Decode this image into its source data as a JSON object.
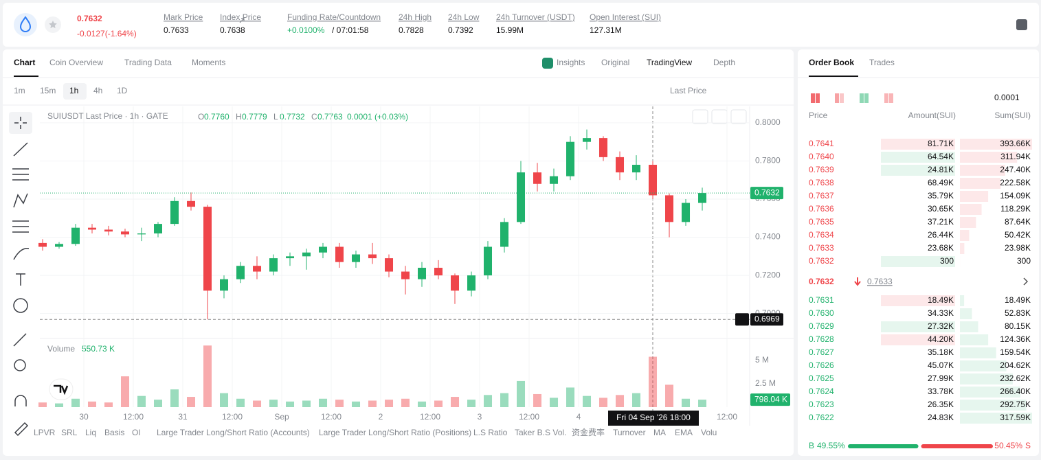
{
  "header": {
    "price": "0.7632",
    "change": "-0.0127(-1.64%)",
    "stats": [
      {
        "label": "Mark Price",
        "value": "0.7633"
      },
      {
        "label": "Index Price",
        "value": "0.7638"
      },
      {
        "label": "Funding Rate/Countdown",
        "value": "+0.0100%",
        "countdown": "/ 07:01:58"
      },
      {
        "label": "24h High",
        "value": "0.7828"
      },
      {
        "label": "24h Low",
        "value": "0.7392"
      },
      {
        "label": "24h Turnover (USDT)",
        "value": "15.99M"
      },
      {
        "label": "Open Interest (SUI)",
        "value": "127.31M"
      }
    ]
  },
  "chart_panel": {
    "tabs": [
      "Chart",
      "Coin Overview",
      "Trading Data",
      "Moments"
    ],
    "view_tabs": [
      "Insights",
      "Original",
      "TradingView",
      "Depth"
    ],
    "intervals": [
      "1m",
      "15m",
      "1h",
      "4h",
      "1D"
    ],
    "price_type": "Last Price",
    "legend": {
      "symbol": "SUIUSDT Last Price · 1h · GATE",
      "ohlc": [
        {
          "k": "O",
          "v": "0.7760"
        },
        {
          "k": "H",
          "v": "0.7779"
        },
        {
          "k": "L",
          "v": "0.7732"
        },
        {
          "k": "C",
          "v": "0.7763"
        }
      ],
      "change": "0.0001 (+0.03%)"
    },
    "volume_legend": {
      "label": "Volume",
      "value": "550.73 K"
    },
    "crosshair_time": "Fri 04 Sep '26   18:00",
    "indicators": [
      "LPVR",
      "SRL",
      "Liq",
      "Basis",
      "OI",
      "Large Trader Long/Short Ratio (Accounts)",
      "Large Trader Long/Short Ratio (Positions)",
      "L.S Ratio",
      "Taker B.S Vol.",
      "资金费率",
      "Turnover",
      "MA",
      "EMA",
      "Volu"
    ]
  },
  "chart_data": {
    "type": "candlestick",
    "up_color": "#20b26c",
    "down_color": "#ef454a",
    "grid": true,
    "x": [
      0,
      4,
      8,
      12,
      16,
      20,
      24,
      28,
      32,
      36,
      40,
      44,
      48,
      52,
      56,
      60,
      64,
      68,
      72,
      76,
      80,
      84,
      88,
      92,
      96,
      100,
      104,
      108,
      112,
      116,
      120,
      124,
      128,
      132,
      136,
      140,
      144,
      148,
      152,
      156,
      160
    ],
    "open": [
      0.737,
      0.735,
      0.7365,
      0.745,
      0.744,
      0.743,
      0.7415,
      0.742,
      0.747,
      0.759,
      0.756,
      0.712,
      0.718,
      0.725,
      0.722,
      0.729,
      0.73,
      0.732,
      0.735,
      0.727,
      0.731,
      0.729,
      0.722,
      0.718,
      0.724,
      0.72,
      0.712,
      0.72,
      0.735,
      0.748,
      0.774,
      0.768,
      0.772,
      0.79,
      0.792,
      0.782,
      0.774,
      0.778,
      0.762,
      0.748,
      0.758
    ],
    "high": [
      0.739,
      0.7375,
      0.747,
      0.747,
      0.746,
      0.7445,
      0.745,
      0.748,
      0.761,
      0.7635,
      0.757,
      0.72,
      0.727,
      0.73,
      0.731,
      0.732,
      0.734,
      0.737,
      0.737,
      0.733,
      0.737,
      0.731,
      0.725,
      0.727,
      0.728,
      0.721,
      0.722,
      0.738,
      0.75,
      0.78,
      0.779,
      0.776,
      0.793,
      0.7965,
      0.793,
      0.785,
      0.783,
      0.78,
      0.763,
      0.76,
      0.766
    ],
    "low": [
      0.733,
      0.734,
      0.7355,
      0.742,
      0.741,
      0.74,
      0.738,
      0.74,
      0.746,
      0.754,
      0.6969,
      0.708,
      0.716,
      0.718,
      0.72,
      0.725,
      0.723,
      0.729,
      0.724,
      0.724,
      0.726,
      0.719,
      0.71,
      0.714,
      0.718,
      0.705,
      0.709,
      0.718,
      0.732,
      0.747,
      0.764,
      0.764,
      0.77,
      0.786,
      0.78,
      0.77,
      0.77,
      0.76,
      0.74,
      0.746,
      0.754
    ],
    "close": [
      0.735,
      0.7365,
      0.745,
      0.744,
      0.743,
      0.7415,
      0.742,
      0.747,
      0.759,
      0.756,
      0.712,
      0.718,
      0.725,
      0.722,
      0.729,
      0.73,
      0.732,
      0.735,
      0.727,
      0.731,
      0.729,
      0.722,
      0.718,
      0.724,
      0.72,
      0.712,
      0.72,
      0.735,
      0.748,
      0.774,
      0.768,
      0.772,
      0.79,
      0.792,
      0.782,
      0.774,
      0.778,
      0.762,
      0.748,
      0.758,
      0.7632
    ],
    "volume": [
      0.5,
      0.4,
      0.9,
      0.6,
      0.5,
      3.3,
      1.2,
      0.8,
      1.9,
      1.1,
      6.6,
      1.5,
      0.9,
      0.7,
      0.8,
      0.6,
      0.7,
      0.9,
      0.8,
      0.6,
      0.7,
      0.8,
      0.9,
      0.6,
      0.7,
      1.1,
      0.8,
      1.3,
      1.5,
      2.8,
      1.4,
      1.0,
      2.1,
      1.2,
      1.0,
      1.3,
      1.5,
      5.4,
      2.4,
      0.9,
      0.8
    ],
    "xlim": [
      -0.667,
      171.33
    ],
    "xticks": [
      {
        "value": 10,
        "label": "30"
      },
      {
        "value": 22,
        "label": "12:00"
      },
      {
        "value": 34,
        "label": "31"
      },
      {
        "value": 46,
        "label": "12:00"
      },
      {
        "value": 58,
        "label": "Sep"
      },
      {
        "value": 70,
        "label": "12:00"
      },
      {
        "value": 82,
        "label": "2"
      },
      {
        "value": 94,
        "label": "12:00"
      },
      {
        "value": 106,
        "label": "3"
      },
      {
        "value": 118,
        "label": "12:00"
      },
      {
        "value": 130,
        "label": "4"
      },
      {
        "value": 166,
        "label": "12:00"
      }
    ],
    "ylim": [
      0.688,
      0.8086
    ],
    "yticks": [
      {
        "value": 0.8,
        "label": "0.8000"
      },
      {
        "value": 0.78,
        "label": "0.7800"
      },
      {
        "value": 0.76,
        "label": "0.7600"
      },
      {
        "value": 0.74,
        "label": "0.7400"
      },
      {
        "value": 0.72,
        "label": "0.7200"
      },
      {
        "value": 0.7,
        "label": "0.7000"
      }
    ],
    "y2lim": [
      0,
      7.06
    ],
    "y2ticks": [
      {
        "value": 5,
        "label": "5 M"
      },
      {
        "value": 2.5,
        "label": "2.5 M"
      }
    ],
    "last_price": {
      "value": 0.7632,
      "label": "0.7632"
    },
    "crosshair_price": {
      "value": 0.6969,
      "label": "0.6969"
    },
    "last_volume": {
      "value": 0.79804,
      "label": "798.04 K"
    }
  },
  "order_book": {
    "tabs": [
      "Order Book",
      "Trades"
    ],
    "precision": "0.0001",
    "columns": [
      "Price",
      "Amount(SUI)",
      "Sum(SUI)"
    ],
    "asks": {
      "prices": [
        "0.7641",
        "0.7640",
        "0.7639",
        "0.7638",
        "0.7637",
        "0.7636",
        "0.7635",
        "0.7634",
        "0.7633",
        "0.7632"
      ],
      "amounts": [
        "81.71K",
        "64.54K",
        "24.81K",
        "68.49K",
        "35.79K",
        "30.65K",
        "37.21K",
        "26.44K",
        "23.68K",
        "300"
      ],
      "sums": [
        393660,
        311940,
        247400,
        222580,
        154090,
        118290,
        87640,
        50420,
        23980,
        300
      ],
      "sum_labels": [
        "393.66K",
        "311.94K",
        "247.40K",
        "222.58K",
        "154.09K",
        "118.29K",
        "87.64K",
        "50.42K",
        "23.98K",
        "300"
      ],
      "highlight": [
        "sell",
        "buy",
        "buy",
        null,
        null,
        null,
        null,
        null,
        null,
        "buy"
      ]
    },
    "mid": {
      "price": "0.7632",
      "mark": "0.7633"
    },
    "bids": {
      "prices": [
        "0.7631",
        "0.7630",
        "0.7629",
        "0.7628",
        "0.7627",
        "0.7626",
        "0.7625",
        "0.7624",
        "0.7623",
        "0.7622"
      ],
      "amounts": [
        "18.49K",
        "34.33K",
        "27.32K",
        "44.20K",
        "35.18K",
        "45.07K",
        "27.99K",
        "33.78K",
        "26.35K",
        "24.83K"
      ],
      "sums": [
        18490,
        52830,
        80150,
        124360,
        159540,
        204620,
        232620,
        266400,
        292750,
        317590
      ],
      "sum_labels": [
        "18.49K",
        "52.83K",
        "80.15K",
        "124.36K",
        "159.54K",
        "204.62K",
        "232.62K",
        "266.40K",
        "292.75K",
        "317.59K"
      ],
      "highlight": [
        "sell",
        null,
        "buy",
        "sell",
        null,
        null,
        null,
        null,
        null,
        null
      ]
    },
    "ratio": {
      "buy_label": "B",
      "buy": 49.55,
      "buy_text": "49.55%",
      "sell": 50.45,
      "sell_text": "50.45%",
      "sell_label": "S"
    }
  }
}
